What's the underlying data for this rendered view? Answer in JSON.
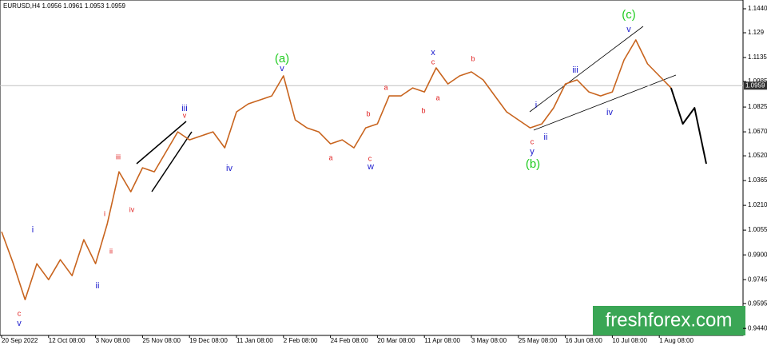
{
  "chart_data": {
    "type": "line",
    "title": "EURUSD,H4 1.0956 1.0961 1.0953 1.0959",
    "categories": [
      "20 Sep 2022",
      null,
      null,
      null,
      "12 Oct 08:00",
      null,
      null,
      null,
      "3 Nov 08:00",
      null,
      null,
      null,
      "25 Nov 08:00",
      null,
      null,
      null,
      "19 Dec 08:00",
      null,
      null,
      null,
      "11 Jan 08:00",
      null,
      null,
      null,
      "2 Feb 08:00",
      null,
      null,
      null,
      "24 Feb 08:00",
      null,
      null,
      null,
      "20 Mar 08:00",
      null,
      null,
      null,
      "11 Apr 08:00",
      null,
      null,
      null,
      "3 May 08:00",
      null,
      null,
      null,
      "25 May 08:00",
      null,
      null,
      null,
      "16 Jun 08:00",
      null,
      null,
      null,
      "10 Jul 08:00",
      null,
      null,
      null,
      "1 Aug 08:00",
      null,
      null,
      null,
      null
    ],
    "series": [
      {
        "color": "#c8641e",
        "values": [
          1.0045,
          0.9845,
          0.962,
          0.9845,
          0.9745,
          0.987,
          0.977,
          0.9995,
          0.9845,
          1.0095,
          1.042,
          1.0295,
          1.0445,
          1.042,
          1.0545,
          1.067,
          1.062,
          1.0645,
          1.067,
          1.057,
          1.0795,
          1.0845,
          1.087,
          1.0895,
          1.102,
          1.0745,
          1.0695,
          1.067,
          1.0595,
          1.062,
          1.057,
          1.0695,
          1.072,
          1.0895,
          1.0895,
          1.0945,
          1.092,
          1.107,
          1.097,
          1.102,
          1.1045,
          1.0995,
          1.0895,
          1.0795,
          1.0745,
          1.0695,
          1.072,
          1.082,
          1.097,
          1.0995,
          1.092,
          1.0895,
          1.092,
          1.112,
          1.1245,
          1.1095,
          1.102,
          1.0945,
          null,
          null,
          null
        ]
      },
      {
        "color": "#000000",
        "values": [
          null,
          null,
          null,
          null,
          null,
          null,
          null,
          null,
          null,
          null,
          null,
          null,
          null,
          null,
          null,
          null,
          null,
          null,
          null,
          null,
          null,
          null,
          null,
          null,
          null,
          null,
          null,
          null,
          null,
          null,
          null,
          null,
          null,
          null,
          null,
          null,
          null,
          null,
          null,
          null,
          null,
          null,
          null,
          null,
          null,
          null,
          null,
          null,
          null,
          null,
          null,
          null,
          null,
          null,
          null,
          null,
          null,
          1.0945,
          1.072,
          1.082,
          1.047
        ]
      }
    ],
    "ylim": [
      0.9396,
      1.1495
    ],
    "yticks": [
      {
        "value": 1.144,
        "label": "1.1440"
      },
      1.129,
      1.1135,
      1.0985,
      1.0825,
      {
        "value": 1.067,
        "label": "1.0670"
      },
      {
        "value": 1.052,
        "label": "1.0520"
      },
      1.0365,
      {
        "value": 1.021,
        "label": "1.0210"
      },
      1.0055,
      {
        "value": 0.99,
        "label": "0.9900"
      },
      0.9745,
      0.9595,
      {
        "value": 0.944,
        "label": "0.9440"
      }
    ],
    "current_price": {
      "value": 1.0959,
      "label": "1.0959"
    },
    "grid": false,
    "annotations": [
      {
        "text": "c",
        "color": "#e02020"
      },
      {
        "text": "v",
        "color": "#1a1acc"
      },
      {
        "text": "i",
        "color": "#1a1acc"
      },
      {
        "text": "ii",
        "color": "#1a1acc"
      },
      {
        "text": "i",
        "color": "#e02020"
      },
      {
        "text": "ii",
        "color": "#e02020"
      },
      {
        "text": "iii",
        "color": "#e02020"
      },
      {
        "text": "iv",
        "color": "#e02020"
      },
      {
        "text": "v",
        "color": "#e02020"
      },
      {
        "text": "iii",
        "color": "#1a1acc"
      },
      {
        "text": "iv",
        "color": "#1a1acc"
      },
      {
        "text": "(a)",
        "color": "#22cc22"
      },
      {
        "text": "v",
        "color": "#1a1acc"
      },
      {
        "text": "a",
        "color": "#e02020"
      },
      {
        "text": "b",
        "color": "#e02020"
      },
      {
        "text": "c",
        "color": "#e02020"
      },
      {
        "text": "w",
        "color": "#1a1acc"
      },
      {
        "text": "a",
        "color": "#e02020"
      },
      {
        "text": "b",
        "color": "#e02020"
      },
      {
        "text": "x",
        "color": "#1a1acc"
      },
      {
        "text": "c",
        "color": "#e02020"
      },
      {
        "text": "a",
        "color": "#e02020"
      },
      {
        "text": "b",
        "color": "#e02020"
      },
      {
        "text": "c",
        "color": "#e02020"
      },
      {
        "text": "y",
        "color": "#1a1acc"
      },
      {
        "text": "(b)",
        "color": "#22cc22"
      },
      {
        "text": "i",
        "color": "#1a1acc"
      },
      {
        "text": "ii",
        "color": "#1a1acc"
      },
      {
        "text": "iii",
        "color": "#1a1acc"
      },
      {
        "text": "iv",
        "color": "#1a1acc"
      },
      {
        "text": "(c)",
        "color": "#22cc22"
      },
      {
        "text": "v",
        "color": "#1a1acc"
      }
    ],
    "watermark": "freshforex.com"
  }
}
